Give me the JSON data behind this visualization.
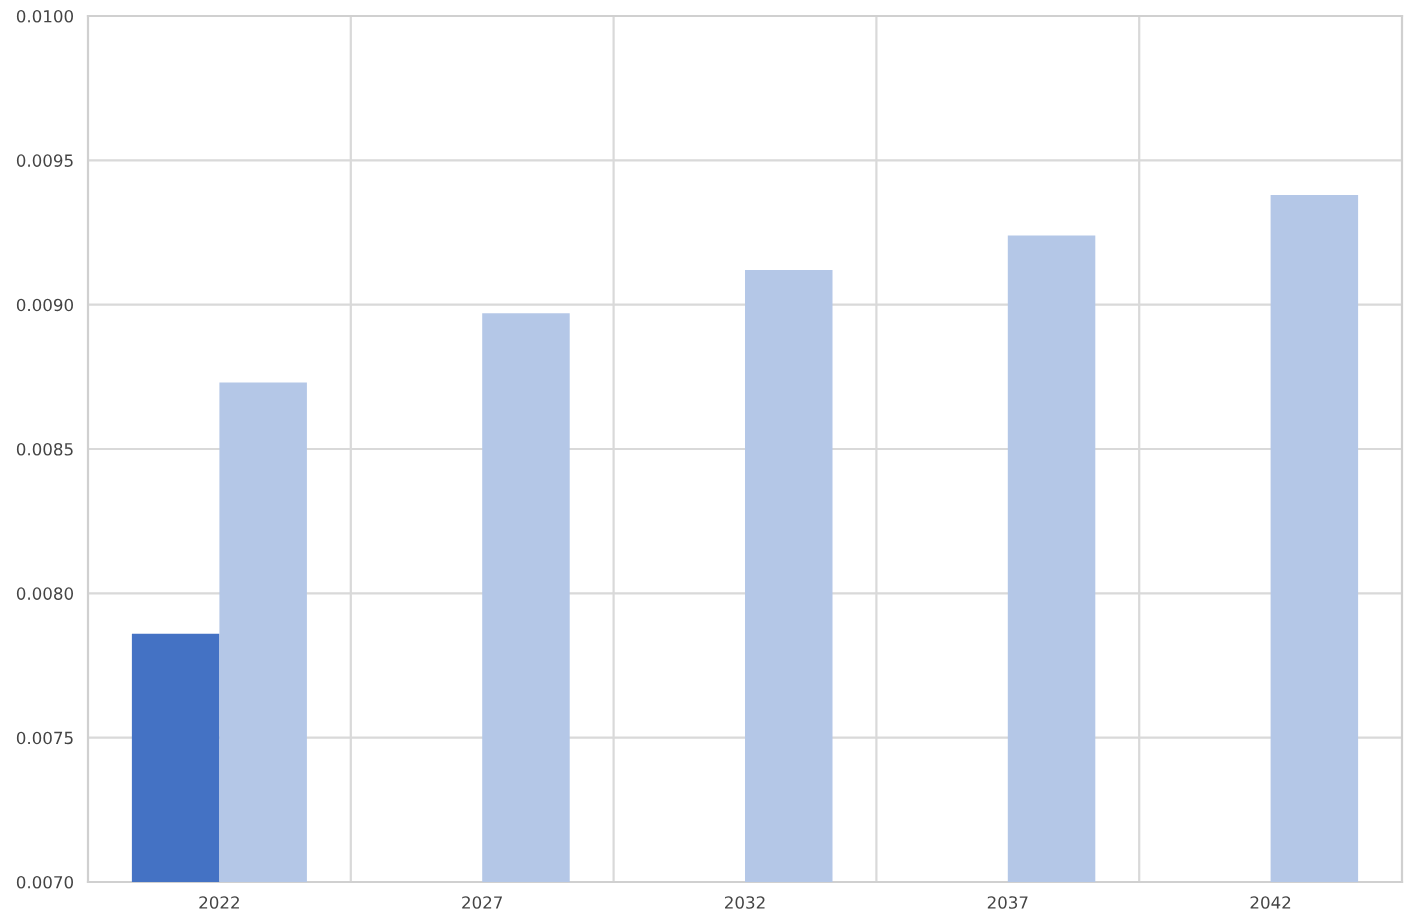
{
  "chart_data": {
    "type": "bar",
    "categories": [
      "2022",
      "2027",
      "2032",
      "2037",
      "2042"
    ],
    "series": [
      {
        "color": "#4472c4",
        "values": [
          0.00786,
          null,
          null,
          null,
          null
        ]
      },
      {
        "color": "#b4c7e7",
        "values": [
          0.00873,
          0.00897,
          0.00912,
          0.00924,
          0.00938
        ]
      }
    ],
    "ylim": [
      0.007,
      0.01
    ],
    "yticks": [
      {
        "value": 0.007,
        "label": "0.0070"
      },
      {
        "value": 0.0075,
        "label": "0.0075"
      },
      {
        "value": 0.008,
        "label": "0.0080"
      },
      {
        "value": 0.0085,
        "label": "0.0085"
      },
      {
        "value": 0.009,
        "label": "0.0090"
      },
      {
        "value": 0.0095,
        "label": "0.0095"
      },
      {
        "value": 0.01,
        "label": "0.0100"
      }
    ],
    "grid": true
  }
}
